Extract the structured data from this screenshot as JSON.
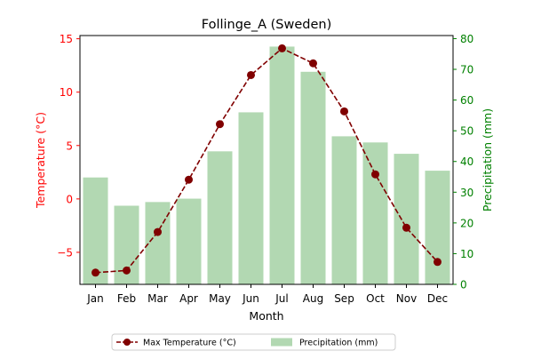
{
  "chart_data": {
    "type": "bar+line",
    "title": "Follinge_A (Sweden)",
    "xlabel": "Month",
    "ylabel_left": "Temperature (°C)",
    "ylabel_right": "Precipitation (mm)",
    "categories": [
      "Jan",
      "Feb",
      "Mar",
      "Apr",
      "May",
      "Jun",
      "Jul",
      "Aug",
      "Sep",
      "Oct",
      "Nov",
      "Dec"
    ],
    "ylim_left": [
      -8,
      15.3
    ],
    "ylim_right": [
      0,
      81
    ],
    "yticks_left": [
      -5,
      0,
      5,
      10,
      15
    ],
    "yticks_right": [
      0,
      10,
      20,
      30,
      40,
      50,
      60,
      70,
      80
    ],
    "series": [
      {
        "name": "Max Temperature (°C)",
        "kind": "line",
        "axis": "left",
        "color": "#800000",
        "values": [
          -6.9,
          -6.7,
          -3.1,
          1.8,
          7.0,
          11.6,
          14.1,
          12.7,
          8.2,
          2.3,
          -2.7,
          -5.9
        ]
      },
      {
        "name": "Precipitation (mm)",
        "kind": "bar",
        "axis": "right",
        "color": "#b2d8b2",
        "values": [
          34.8,
          25.6,
          26.8,
          27.9,
          43.3,
          56.0,
          77.4,
          69.2,
          48.2,
          46.2,
          42.5,
          37.0
        ]
      }
    ],
    "colors": {
      "left_axis": "#ff0000",
      "right_axis": "#008000"
    },
    "legend": {
      "placement": "bottom-center",
      "entries": [
        "Max Temperature (°C)",
        "Precipitation (mm)"
      ]
    },
    "grid": false
  }
}
